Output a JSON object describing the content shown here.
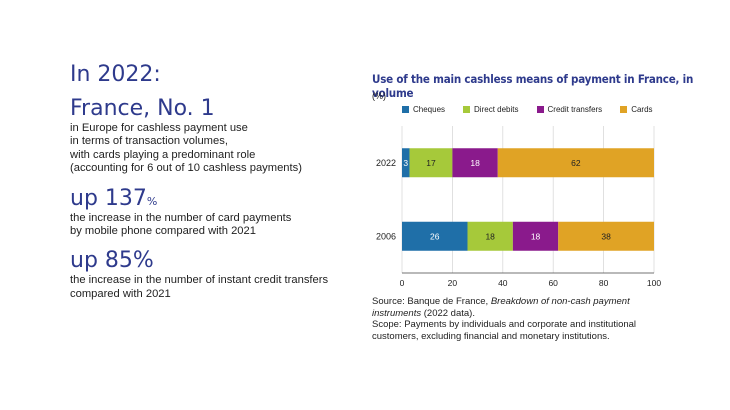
{
  "left": {
    "year_heading": "In 2022:",
    "blocks": [
      {
        "headline": "France, No. 1",
        "headline_suffix": "",
        "text": "in Europe for cashless payment use\nin terms of transaction volumes,\nwith cards playing a predominant role\n(accounting for 6 out of 10 cashless payments)"
      },
      {
        "headline": "up 137",
        "headline_suffix": "%",
        "text": "the increase in the number of card payments\nby mobile phone compared with 2021"
      },
      {
        "headline": "up 85%",
        "headline_suffix": "",
        "text": "the increase in the number of instant credit transfers\ncompared with 2021"
      }
    ]
  },
  "chart_data": {
    "type": "bar",
    "orientation": "horizontal",
    "stacked": true,
    "title": "Use of the main cashless means of payment in France, in volume",
    "unit_label": "(%)",
    "categories": [
      "2022",
      "2006"
    ],
    "series": [
      {
        "name": "Cheques",
        "color": "#1f6fa8",
        "values": [
          3,
          26
        ]
      },
      {
        "name": "Direct debits",
        "color": "#a6c93a",
        "values": [
          17,
          18
        ]
      },
      {
        "name": "Credit transfers",
        "color": "#8a1a8c",
        "values": [
          18,
          18
        ]
      },
      {
        "name": "Cards",
        "color": "#e0a325",
        "values": [
          62,
          38
        ]
      }
    ],
    "xlim": [
      0,
      100
    ],
    "xticks": [
      "0",
      "20",
      "40",
      "60",
      "80",
      "100"
    ],
    "grid": true,
    "legend_position": "top"
  },
  "source": {
    "prefix": "Source: Banque de France, ",
    "italic": "Breakdown of non-cash payment instruments",
    "suffix": " (2022 data).",
    "scope": "Scope: Payments by individuals and corporate and institutional customers, excluding financial and monetary institutions."
  }
}
